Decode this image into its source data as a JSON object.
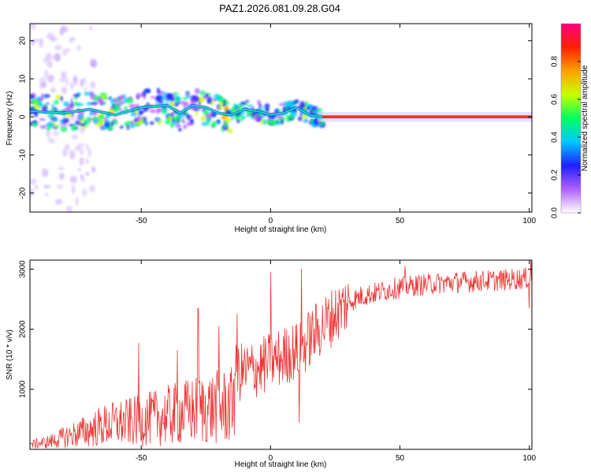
{
  "figure_title": "PAZ1.2026.081.09.28.G04",
  "chart_data": [
    {
      "type": "heatmap",
      "title": "PAZ1.2026.081.09.28.G04",
      "xlabel": "Height of straight line (km)",
      "ylabel": "Frequency (Hz)",
      "xlim": [
        -93,
        101
      ],
      "ylim": [
        -25,
        24.5
      ],
      "x_ticks": [
        -50,
        0,
        50,
        100
      ],
      "y_ticks": [
        -20,
        -10,
        0,
        10,
        20
      ],
      "ridge": {
        "description_points_x": [
          -93,
          -80,
          -70,
          -60,
          -50,
          -40,
          -35,
          -30,
          -25,
          -20,
          -15,
          -10,
          -5,
          0,
          5,
          10,
          15,
          20,
          30,
          50,
          70,
          90,
          100
        ],
        "frequency_hz": [
          1.5,
          1.0,
          2.0,
          0.5,
          2.5,
          3.0,
          1.0,
          3.0,
          2.5,
          1.0,
          0.5,
          2.0,
          1.5,
          0.5,
          1.0,
          2.5,
          0.5,
          0.0,
          0.0,
          0.0,
          0.0,
          0.0,
          0.0
        ]
      },
      "colorbar": {
        "label": "Normalized spectral amplitude",
        "range": [
          0,
          1
        ],
        "ticks": [
          0.0,
          0.2,
          0.4,
          0.6,
          0.8
        ],
        "colors": [
          "#ffffff",
          "#b060ff",
          "#2020ff",
          "#00c8ff",
          "#00ff60",
          "#c8ff00",
          "#ffa000",
          "#ff2000",
          "#ff0080"
        ]
      }
    },
    {
      "type": "line",
      "xlabel": "Height of straight line (km)",
      "ylabel": "SNR (10 * v/v)",
      "xlim": [
        -93,
        101
      ],
      "ylim": [
        0,
        3150
      ],
      "x_ticks": [
        -50,
        0,
        50,
        100
      ],
      "y_ticks": [
        1000,
        2000,
        3000
      ],
      "series": [
        {
          "name": "SNR",
          "color": "#ee3333",
          "x": [
            -93,
            -85,
            -80,
            -75,
            -70,
            -65,
            -60,
            -55,
            -50,
            -45,
            -40,
            -35,
            -30,
            -25,
            -20,
            -15,
            -14,
            -10,
            -5,
            0,
            5,
            10,
            11,
            15,
            20,
            25,
            30,
            35,
            40,
            45,
            50,
            60,
            70,
            80,
            90,
            100,
            101
          ],
          "values": [
            80,
            130,
            200,
            260,
            320,
            390,
            430,
            450,
            480,
            520,
            560,
            600,
            640,
            680,
            700,
            720,
            1250,
            1300,
            1350,
            1450,
            1550,
            1650,
            1600,
            1850,
            2050,
            2250,
            2450,
            2550,
            2600,
            2650,
            2700,
            2750,
            2780,
            2800,
            2820,
            2850,
            2870
          ],
          "spikes": [
            {
              "x": -51,
              "value": 1770
            },
            {
              "x": -36,
              "value": 1650
            },
            {
              "x": -28,
              "value": 2350
            },
            {
              "x": -20,
              "value": 2050
            },
            {
              "x": -13,
              "value": 2250
            },
            {
              "x": 0,
              "value": 2950
            },
            {
              "x": 11,
              "value": 450
            },
            {
              "x": 12,
              "value": 3000
            },
            {
              "x": 52,
              "value": 3050
            },
            {
              "x": 100,
              "value": 2350
            },
            {
              "x": 100.5,
              "value": 3150
            }
          ]
        }
      ]
    }
  ]
}
